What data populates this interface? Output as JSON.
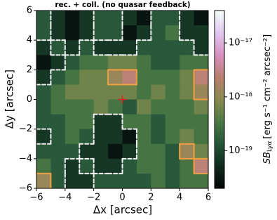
{
  "chart_data": {
    "type": "heatmap",
    "title": "rec. + coll. (no quasar feedback)",
    "x_label": "Δx [arcsec]",
    "y_label": "Δy [arcsec]",
    "colorbar_label": "SB",
    "colorbar_label_sub": "Lyα",
    "colorbar_label_units": "[erg s⁻¹ cm⁻² arcsec⁻²]",
    "xlim": [
      -6,
      6
    ],
    "ylim": [
      -6,
      6
    ],
    "xticks": [
      {
        "value": -6,
        "label": "−6"
      },
      {
        "value": -4,
        "label": "−4"
      },
      {
        "value": -2,
        "label": "−2"
      },
      0,
      2,
      4,
      6
    ],
    "yticks": [
      {
        "value": -6,
        "label": "−6"
      },
      {
        "value": -4,
        "label": "−4"
      },
      {
        "value": -2,
        "label": "−2"
      },
      0,
      2,
      4,
      6
    ],
    "zlim": [
      2e-20,
      4e-17
    ],
    "zscale": "log",
    "zticks": [
      {
        "value": 1e-19,
        "label": "10⁻¹⁹"
      },
      {
        "value": 1e-18,
        "label": "10⁻¹⁸"
      },
      {
        "value": 1e-17,
        "label": "10⁻¹⁷"
      }
    ],
    "colormap": [
      "#050505",
      "#0f2a1e",
      "#245438",
      "#4c7a45",
      "#8a8a50",
      "#b98070",
      "#d890c0",
      "#e0c8f0",
      "#f4fff8"
    ],
    "z": [
      [
        1.5e-19,
        7e-20,
        3e-20,
        7e-20,
        1.5e-19,
        1.5e-19,
        7e-20,
        3e-20,
        1.5e-19,
        1.5e-19,
        7e-20,
        3e-20
      ],
      [
        1.5e-19,
        7e-20,
        3e-20,
        7e-20,
        1.5e-19,
        1.5e-19,
        3e-20,
        7e-20,
        1.5e-19,
        3e-19,
        7e-20,
        7e-20
      ],
      [
        7e-20,
        1.5e-19,
        7e-20,
        1.5e-19,
        7e-20,
        7e-20,
        7e-20,
        1.5e-19,
        1.5e-19,
        1.5e-19,
        1.5e-19,
        7e-20
      ],
      [
        3e-20,
        7e-20,
        1.5e-19,
        3e-19,
        3e-19,
        6e-19,
        6e-19,
        3e-19,
        1.5e-19,
        1.5e-19,
        3e-19,
        3e-19
      ],
      [
        7e-20,
        1.5e-19,
        3e-19,
        6e-19,
        6e-19,
        1.2e-18,
        2.5e-18,
        3e-19,
        3e-19,
        3e-19,
        6e-19,
        2.5e-18
      ],
      [
        1.5e-19,
        3e-19,
        6e-19,
        6e-19,
        6e-19,
        6e-19,
        6e-19,
        3e-19,
        6e-19,
        3e-19,
        6e-19,
        1.2e-18
      ],
      [
        1.5e-19,
        3e-19,
        3e-19,
        3e-19,
        6e-19,
        3e-19,
        1.5e-19,
        6e-19,
        3e-19,
        3e-19,
        3e-19,
        6e-19
      ],
      [
        1.5e-19,
        1.5e-19,
        3e-19,
        3e-19,
        7e-20,
        7e-20,
        3e-19,
        3e-19,
        1.5e-19,
        3e-19,
        3e-19,
        3e-19
      ],
      [
        7e-20,
        1.5e-19,
        3e-19,
        1.5e-19,
        7e-20,
        7e-20,
        3e-20,
        3e-19,
        1.5e-19,
        3e-19,
        6e-19,
        3e-19
      ],
      [
        1.5e-19,
        1.5e-19,
        1.5e-19,
        7e-20,
        7e-20,
        3e-20,
        7e-20,
        3e-19,
        3e-19,
        1.5e-19,
        1.2e-18,
        6e-19
      ],
      [
        3e-19,
        1.5e-19,
        7e-20,
        1.5e-19,
        7e-20,
        7e-20,
        1.5e-19,
        3e-19,
        3e-19,
        1.5e-19,
        3e-19,
        2.5e-18
      ],
      [
        1.2e-18,
        1.5e-19,
        7e-20,
        7e-20,
        1.5e-19,
        1.5e-19,
        1.5e-19,
        1.5e-19,
        3e-19,
        1.5e-19,
        3e-19,
        3e-19
      ]
    ],
    "contours": [
      {
        "level": 1e-19,
        "color": "#f0f0f0",
        "dashed": true
      },
      {
        "level": 1e-18,
        "color": "#f0a040",
        "dashed": false
      }
    ],
    "marker": {
      "x": 0,
      "y": 0,
      "color": "#e02020"
    }
  }
}
